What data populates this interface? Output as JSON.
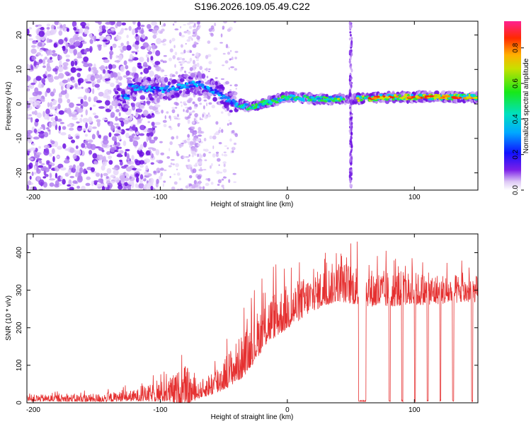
{
  "title": "S196.2026.109.05.49.C22",
  "spectrogram": {
    "type": "heatmap",
    "xlabel": "Height of straight line (km)",
    "ylabel": "Frequency (Hz)",
    "xlim": [
      -205,
      150
    ],
    "ylim": [
      -25,
      24
    ],
    "xticks": [
      -200,
      -100,
      0,
      100
    ],
    "yticks": [
      -20,
      -10,
      0,
      10,
      20
    ],
    "colorbar": {
      "label": "Normalized spectral amplitude",
      "range": [
        0,
        0.95
      ],
      "ticks": [
        "0.0",
        "0.2",
        "0.4",
        "0.6",
        "0.8"
      ]
    },
    "ridge_frequency_hz": [
      {
        "x": -125,
        "f": 5
      },
      {
        "x": -100,
        "f": 4
      },
      {
        "x": -85,
        "f": 5
      },
      {
        "x": -70,
        "f": 6
      },
      {
        "x": -55,
        "f": 3
      },
      {
        "x": -40,
        "f": 0
      },
      {
        "x": -30,
        "f": -1
      },
      {
        "x": -20,
        "f": 0
      },
      {
        "x": -10,
        "f": 1
      },
      {
        "x": 0,
        "f": 2
      },
      {
        "x": 20,
        "f": 1.5
      },
      {
        "x": 45,
        "f": 1.5
      },
      {
        "x": 55,
        "f": 1.5
      },
      {
        "x": 80,
        "f": 2
      },
      {
        "x": 100,
        "f": 2
      },
      {
        "x": 150,
        "f": 2
      }
    ],
    "vertical_streak_x": 50
  },
  "snr": {
    "type": "line",
    "xlabel": "Height of straight line (km)",
    "ylabel": "SNR (10 * v/v)",
    "xlim": [
      -205,
      150
    ],
    "ylim": [
      0,
      450
    ],
    "xticks": [
      -200,
      -100,
      0,
      100
    ],
    "yticks": [
      0,
      100,
      200,
      300,
      400
    ],
    "series": [
      {
        "name": "SNR",
        "color": "#e53030",
        "envelope": [
          {
            "x": -205,
            "base": 12,
            "amp": 18
          },
          {
            "x": -150,
            "base": 12,
            "amp": 22
          },
          {
            "x": -120,
            "base": 18,
            "amp": 30
          },
          {
            "x": -95,
            "base": 30,
            "amp": 60
          },
          {
            "x": -80,
            "base": 40,
            "amp": 110
          },
          {
            "x": -70,
            "base": 30,
            "amp": 40
          },
          {
            "x": -55,
            "base": 60,
            "amp": 80
          },
          {
            "x": -35,
            "base": 120,
            "amp": 120
          },
          {
            "x": -15,
            "base": 220,
            "amp": 130
          },
          {
            "x": 0,
            "base": 250,
            "amp": 120
          },
          {
            "x": 20,
            "base": 290,
            "amp": 100
          },
          {
            "x": 40,
            "base": 320,
            "amp": 110
          },
          {
            "x": 55,
            "base": 310,
            "amp": 110
          },
          {
            "x": 70,
            "base": 300,
            "amp": 100
          },
          {
            "x": 100,
            "base": 300,
            "amp": 90
          },
          {
            "x": 150,
            "base": 300,
            "amp": 70
          }
        ],
        "dropouts": [
          [
            56,
            62
          ],
          [
            80,
            81
          ],
          [
            90,
            91
          ],
          [
            100,
            101
          ],
          [
            110,
            111
          ],
          [
            120,
            121
          ],
          [
            130,
            131
          ],
          [
            145,
            146
          ]
        ]
      }
    ]
  }
}
